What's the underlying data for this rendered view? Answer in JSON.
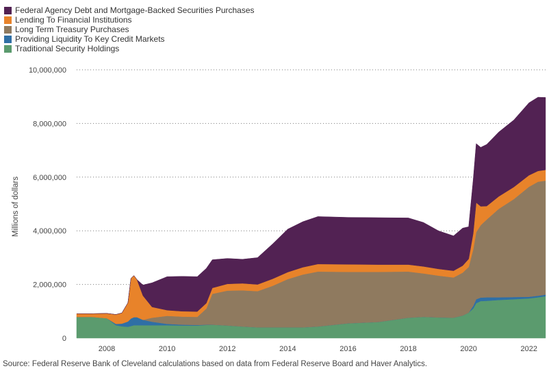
{
  "chart_data": {
    "type": "area",
    "stacked": true,
    "ylabel": "Millions of dollars",
    "y_tick_labels": [
      "0",
      "2,000,000",
      "4,000,000",
      "6,000,000",
      "8,000,000",
      "10,000,000"
    ],
    "ylim": [
      0,
      10000000
    ],
    "x_tick_labels": [
      "2008",
      "2010",
      "2012",
      "2014",
      "2016",
      "2018",
      "2020",
      "2022"
    ],
    "xlim": [
      2007.0,
      2022.55
    ],
    "legend_position": "top-left",
    "grid": "horizontal dotted",
    "x": [
      2007.0,
      2007.5,
      2008.0,
      2008.3,
      2008.5,
      2008.7,
      2008.8,
      2008.9,
      2009.0,
      2009.2,
      2009.5,
      2010.0,
      2010.5,
      2011.0,
      2011.3,
      2011.5,
      2012.0,
      2012.5,
      2013.0,
      2013.5,
      2014.0,
      2014.5,
      2015.0,
      2016.0,
      2017.0,
      2018.0,
      2018.5,
      2019.0,
      2019.5,
      2019.8,
      2020.0,
      2020.15,
      2020.25,
      2020.4,
      2020.6,
      2021.0,
      2021.5,
      2022.0,
      2022.3,
      2022.55
    ],
    "series": [
      {
        "name": "Traditional Security Holdings",
        "color": "#5b9b6e",
        "values": [
          790000,
          790000,
          740000,
          480000,
          440000,
          420000,
          450000,
          480000,
          480000,
          480000,
          480000,
          480000,
          470000,
          470000,
          490000,
          500000,
          470000,
          430000,
          400000,
          400000,
          400000,
          400000,
          430000,
          550000,
          600000,
          760000,
          790000,
          770000,
          760000,
          840000,
          950000,
          1100000,
          1300000,
          1380000,
          1390000,
          1420000,
          1450000,
          1480000,
          1520000,
          1560000
        ]
      },
      {
        "name": "Providing Liquidity To Key Credit Markets",
        "color": "#2f6fa5",
        "values": [
          0,
          0,
          0,
          50000,
          100000,
          200000,
          280000,
          300000,
          300000,
          200000,
          130000,
          50000,
          30000,
          20000,
          10000,
          0,
          0,
          0,
          0,
          0,
          0,
          0,
          0,
          0,
          0,
          0,
          0,
          0,
          0,
          0,
          0,
          100000,
          150000,
          130000,
          130000,
          100000,
          80000,
          60000,
          60000,
          60000
        ]
      },
      {
        "name": "Long Term Treasury Purchases",
        "color": "#8f7a5f",
        "values": [
          0,
          0,
          0,
          0,
          0,
          0,
          0,
          0,
          0,
          0,
          150000,
          300000,
          300000,
          300000,
          600000,
          1150000,
          1300000,
          1350000,
          1350000,
          1550000,
          1800000,
          1970000,
          2050000,
          1920000,
          1870000,
          1720000,
          1620000,
          1560000,
          1500000,
          1600000,
          1700000,
          2100000,
          2500000,
          2700000,
          2900000,
          3300000,
          3650000,
          4100000,
          4250000,
          4250000
        ]
      },
      {
        "name": "Lending To Financial Institutions",
        "color": "#e8832a",
        "values": [
          120000,
          120000,
          180000,
          350000,
          400000,
          700000,
          1500000,
          1550000,
          1400000,
          900000,
          400000,
          210000,
          200000,
          200000,
          200000,
          220000,
          250000,
          260000,
          250000,
          260000,
          260000,
          270000,
          280000,
          280000,
          270000,
          260000,
          260000,
          250000,
          250000,
          260000,
          300000,
          600000,
          1100000,
          700000,
          500000,
          460000,
          450000,
          430000,
          400000,
          400000
        ]
      },
      {
        "name": "Federal Agency Debt and Mortgage-Backed Securities Purchases",
        "color": "#522253",
        "values": [
          0,
          0,
          0,
          0,
          0,
          0,
          0,
          0,
          0,
          400000,
          900000,
          1250000,
          1300000,
          1300000,
          1300000,
          1050000,
          950000,
          900000,
          1000000,
          1300000,
          1600000,
          1700000,
          1770000,
          1750000,
          1750000,
          1740000,
          1640000,
          1420000,
          1300000,
          1400000,
          1200000,
          2000000,
          2200000,
          2200000,
          2300000,
          2400000,
          2500000,
          2700000,
          2750000,
          2700000
        ]
      }
    ]
  },
  "legend": [
    {
      "label": "Federal Agency Debt and Mortgage-Backed Securities Purchases",
      "color": "#522253"
    },
    {
      "label": "Lending To Financial Institutions",
      "color": "#e8832a"
    },
    {
      "label": "Long Term Treasury Purchases",
      "color": "#8f7a5f"
    },
    {
      "label": "Providing Liquidity To Key Credit Markets",
      "color": "#2f6fa5"
    },
    {
      "label": "Traditional Security Holdings",
      "color": "#5b9b6e"
    }
  ],
  "source_note": "Source: Federal Reserve Bank of Cleveland calculations based on data from Federal Reserve Board and Haver Analytics."
}
